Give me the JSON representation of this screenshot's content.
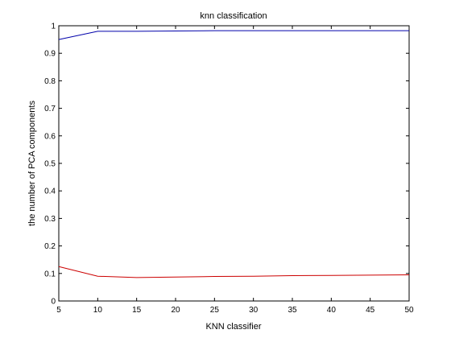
{
  "chart_data": {
    "type": "line",
    "title": "knn classification",
    "xlabel": "KNN classifier",
    "ylabel": "the number of PCA components",
    "xlim": [
      5,
      50
    ],
    "ylim": [
      0,
      1
    ],
    "xticks": [
      5,
      10,
      15,
      20,
      25,
      30,
      35,
      40,
      45,
      50
    ],
    "xtick_labels": [
      "5",
      "10",
      "15",
      "20",
      "25",
      "30",
      "35",
      "40",
      "45",
      "50"
    ],
    "yticks": [
      0,
      0.1,
      0.2,
      0.3,
      0.4,
      0.5,
      0.6,
      0.7,
      0.8,
      0.9,
      1
    ],
    "ytick_labels": [
      "0",
      "0.1",
      "0.2",
      "0.3",
      "0.4",
      "0.5",
      "0.6",
      "0.7",
      "0.8",
      "0.9",
      "1"
    ],
    "grid": false,
    "x": [
      5,
      10,
      15,
      20,
      25,
      30,
      35,
      40,
      45,
      50
    ],
    "series": [
      {
        "color": "#0000aa",
        "values": [
          0.95,
          0.98,
          0.98,
          0.981,
          0.982,
          0.982,
          0.982,
          0.982,
          0.982,
          0.982
        ]
      },
      {
        "color": "#cc0000",
        "values": [
          0.125,
          0.09,
          0.085,
          0.087,
          0.089,
          0.09,
          0.092,
          0.093,
          0.094,
          0.095
        ]
      }
    ]
  }
}
